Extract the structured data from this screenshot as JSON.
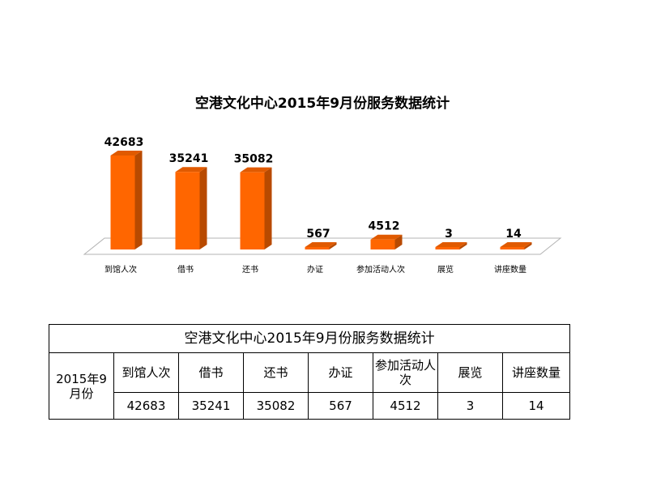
{
  "chart_data": {
    "type": "bar",
    "title": "空港文化中心2015年9月份服务数据统计",
    "categories": [
      "到馆人次",
      "借书",
      "还书",
      "办证",
      "参加活动人次",
      "展览",
      "讲座数量"
    ],
    "values": [
      42683,
      35241,
      35082,
      567,
      4512,
      3,
      14
    ],
    "xlabel": "",
    "ylabel": "",
    "ylim": [
      0,
      45000
    ],
    "grid": false,
    "legend": "none",
    "bar_color": "#ff6600",
    "bar_side_color": "#b84a00",
    "bar_top_color": "#e05a00"
  },
  "table": {
    "title": "空港文化中心2015年9月份服务数据统计",
    "row_header": "2015年9月份",
    "headers": [
      "到馆人次",
      "借书",
      "还书",
      "办证",
      "参加活动人次",
      "展览",
      "讲座数量"
    ],
    "values": [
      "42683",
      "35241",
      "35082",
      "567",
      "4512",
      "3",
      "14"
    ]
  }
}
